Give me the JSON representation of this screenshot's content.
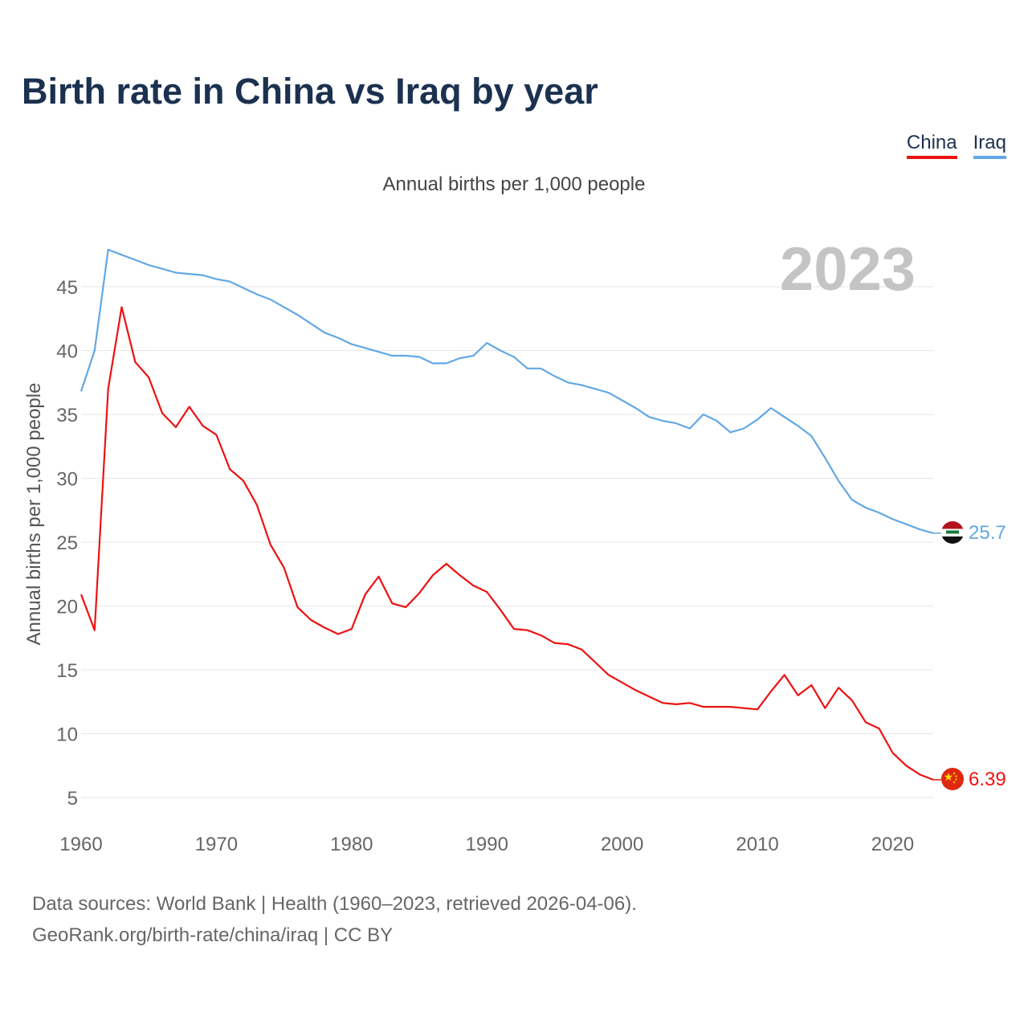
{
  "title": "Birth rate in China vs Iraq by year",
  "legend": [
    {
      "name": "China",
      "color": "#ee1111"
    },
    {
      "name": "Iraq",
      "color": "#62a8e5"
    }
  ],
  "footer": {
    "line1": "Data sources: World Bank | Health (1960–2023, retrieved 2026-04-06).",
    "line2": "GeoRank.org/birth-rate/china/iraq | CC BY"
  },
  "chart_data": {
    "type": "line",
    "title": "Birth rate in China vs Iraq by year",
    "subtitle": "Annual births per 1,000 people",
    "ylabel": "Annual births per 1,000 people",
    "xlabel": "",
    "year_label": "2023",
    "xlim": [
      1960,
      2023
    ],
    "ylim": [
      2,
      49
    ],
    "x_ticks": [
      1960,
      1970,
      1980,
      1990,
      2000,
      2010,
      2020
    ],
    "y_ticks": [
      5,
      10,
      15,
      20,
      25,
      30,
      35,
      40,
      45
    ],
    "grid": true,
    "legend_position": "top-right",
    "x": [
      1960,
      1961,
      1962,
      1963,
      1964,
      1965,
      1966,
      1967,
      1968,
      1969,
      1970,
      1971,
      1972,
      1973,
      1974,
      1975,
      1976,
      1977,
      1978,
      1979,
      1980,
      1981,
      1982,
      1983,
      1984,
      1985,
      1986,
      1987,
      1988,
      1989,
      1990,
      1991,
      1992,
      1993,
      1994,
      1995,
      1996,
      1997,
      1998,
      1999,
      2000,
      2001,
      2002,
      2003,
      2004,
      2005,
      2006,
      2007,
      2008,
      2009,
      2010,
      2011,
      2012,
      2013,
      2014,
      2015,
      2016,
      2017,
      2018,
      2019,
      2020,
      2021,
      2022,
      2023
    ],
    "series": [
      {
        "name": "China",
        "color": "#ee1111",
        "end_label": "6.39",
        "values": [
          20.9,
          18.1,
          37.0,
          43.4,
          39.1,
          37.9,
          35.1,
          34.0,
          35.6,
          34.1,
          33.4,
          30.7,
          29.8,
          27.9,
          24.8,
          23.0,
          19.9,
          18.9,
          18.3,
          17.8,
          18.2,
          20.9,
          22.3,
          20.2,
          19.9,
          21.0,
          22.4,
          23.3,
          22.4,
          21.6,
          21.1,
          19.7,
          18.2,
          18.1,
          17.7,
          17.1,
          17.0,
          16.6,
          15.6,
          14.6,
          14.0,
          13.4,
          12.9,
          12.4,
          12.3,
          12.4,
          12.1,
          12.1,
          12.1,
          12.0,
          11.9,
          13.3,
          14.6,
          13.0,
          13.8,
          12.0,
          13.6,
          12.6,
          10.9,
          10.4,
          8.5,
          7.5,
          6.8,
          6.39
        ]
      },
      {
        "name": "Iraq",
        "color": "#62a8e5",
        "end_label": "25.7",
        "values": [
          36.8,
          40.0,
          47.9,
          47.5,
          47.1,
          46.7,
          46.4,
          46.1,
          46.0,
          45.9,
          45.6,
          45.4,
          44.9,
          44.4,
          44.0,
          43.4,
          42.8,
          42.1,
          41.4,
          41.0,
          40.5,
          40.2,
          39.9,
          39.6,
          39.6,
          39.5,
          39.0,
          39.0,
          39.4,
          39.6,
          40.6,
          40.0,
          39.5,
          38.6,
          38.6,
          38.0,
          37.5,
          37.3,
          37.0,
          36.7,
          36.1,
          35.5,
          34.8,
          34.5,
          34.3,
          33.9,
          35.0,
          34.5,
          33.6,
          33.9,
          34.6,
          35.5,
          34.8,
          34.1,
          33.3,
          31.6,
          29.8,
          28.3,
          27.7,
          27.3,
          26.8,
          26.4,
          26.0,
          25.7
        ]
      }
    ]
  }
}
